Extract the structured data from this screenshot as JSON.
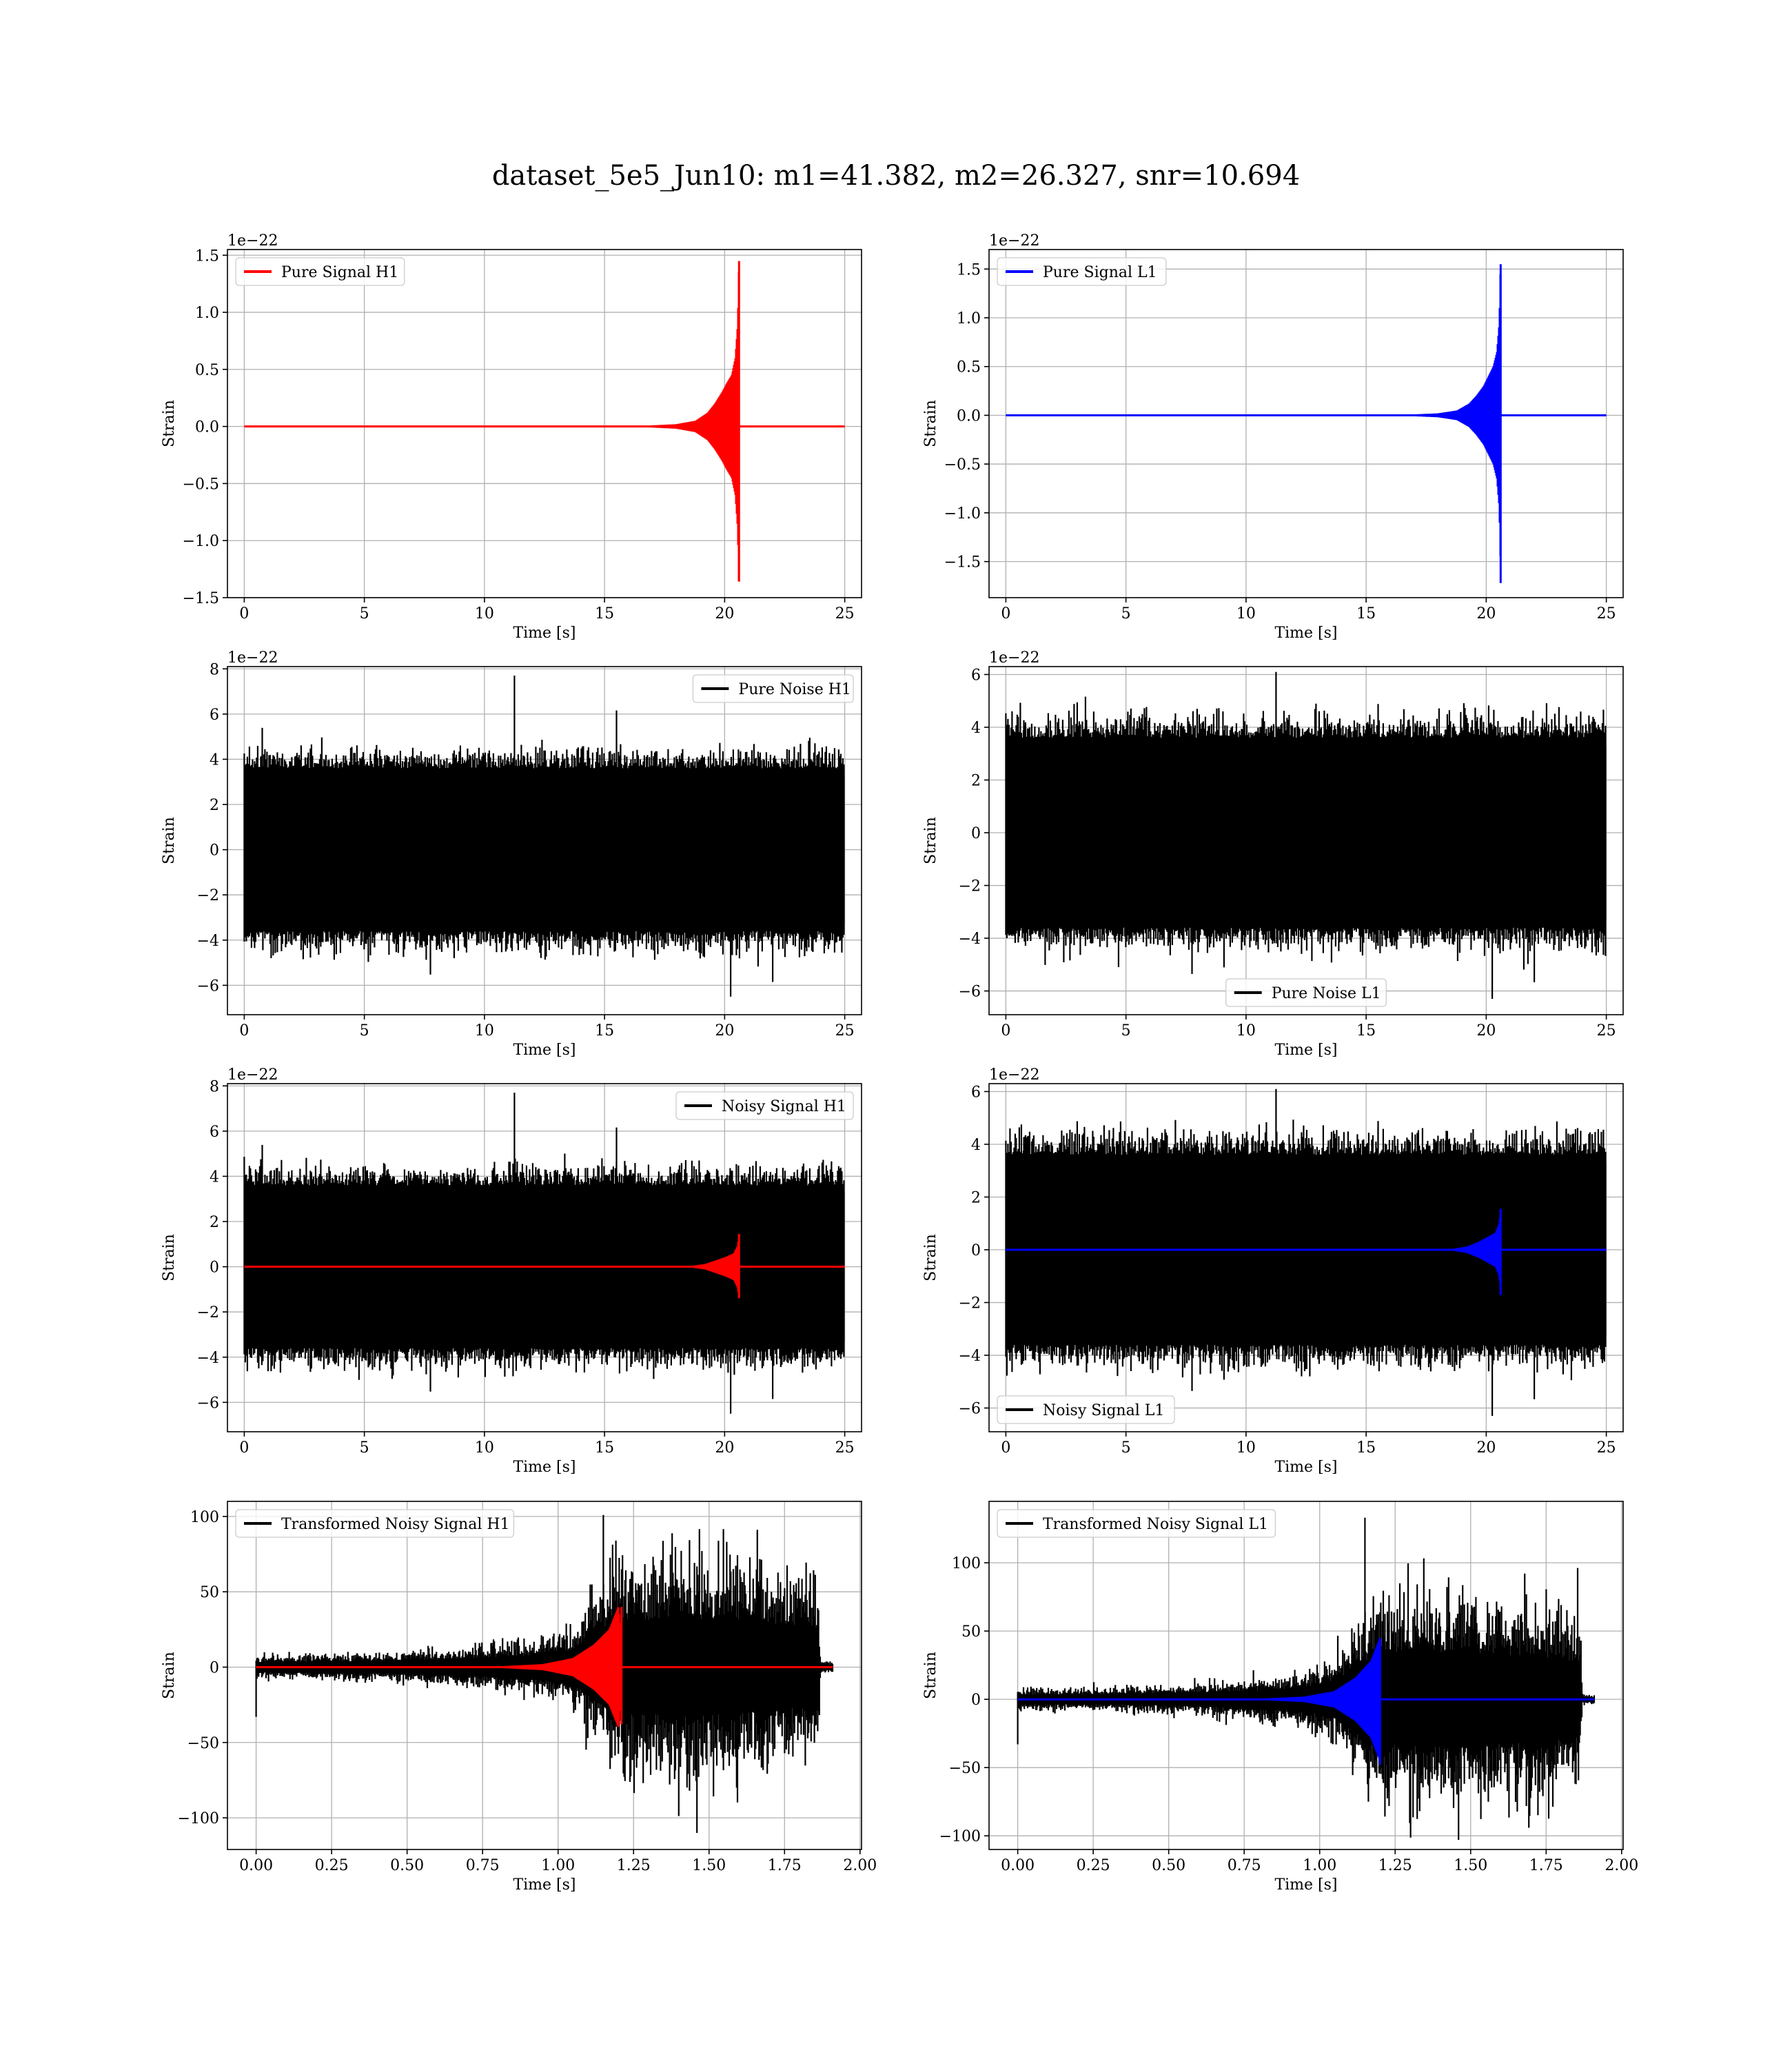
{
  "figure": {
    "title": "dataset_5e5_Jun10: m1=41.382, m2=26.327, snr=10.694"
  },
  "colors": {
    "h1": "#ff0000",
    "l1": "#0000ff",
    "noise": "#000000",
    "grid": "#b0b0b0"
  },
  "chart_data": [
    {
      "id": "pure-signal-h1",
      "type": "line",
      "kind": "chirp",
      "title": "",
      "xlabel": "Time [s]",
      "ylabel": "Strain",
      "offset_text": "1e−22",
      "xlim": [
        -0.7,
        25.7
      ],
      "ylim": [
        -1.5,
        1.55
      ],
      "xticks": [
        0,
        5,
        10,
        15,
        20,
        25
      ],
      "xtick_labels": [
        "0",
        "5",
        "10",
        "15",
        "20",
        "25"
      ],
      "yticks": [
        -1.5,
        -1.0,
        -0.5,
        0.0,
        0.5,
        1.0,
        1.5
      ],
      "ytick_labels": [
        "−1.5",
        "−1.0",
        "−0.5",
        "0.0",
        "0.5",
        "1.0",
        "1.5"
      ],
      "grid": true,
      "legend_position": "upper left",
      "series": [
        {
          "name": "Pure Signal H1",
          "color": "#ff0000",
          "x_range": [
            0,
            25
          ],
          "merger_time": 20.6,
          "peak": 1.45,
          "trough": -1.36,
          "envelope": [
            [
              16.0,
              0.005
            ],
            [
              17.0,
              0.01
            ],
            [
              18.0,
              0.02
            ],
            [
              18.8,
              0.05
            ],
            [
              19.3,
              0.12
            ],
            [
              19.6,
              0.2
            ],
            [
              19.9,
              0.3
            ],
            [
              20.1,
              0.38
            ],
            [
              20.3,
              0.45
            ],
            [
              20.45,
              0.6
            ],
            [
              20.55,
              0.9
            ],
            [
              20.6,
              1.45
            ],
            [
              20.62,
              0.0
            ]
          ]
        }
      ]
    },
    {
      "id": "pure-signal-l1",
      "type": "line",
      "kind": "chirp",
      "title": "",
      "xlabel": "Time [s]",
      "ylabel": "Strain",
      "offset_text": "1e−22",
      "xlim": [
        -0.7,
        25.7
      ],
      "ylim": [
        -1.87,
        1.7
      ],
      "xticks": [
        0,
        5,
        10,
        15,
        20,
        25
      ],
      "xtick_labels": [
        "0",
        "5",
        "10",
        "15",
        "20",
        "25"
      ],
      "yticks": [
        -1.5,
        -1.0,
        -0.5,
        0.0,
        0.5,
        1.0,
        1.5
      ],
      "ytick_labels": [
        "−1.5",
        "−1.0",
        "−0.5",
        "0.0",
        "0.5",
        "1.0",
        "1.5"
      ],
      "grid": true,
      "legend_position": "upper left",
      "series": [
        {
          "name": "Pure Signal L1",
          "color": "#0000ff",
          "x_range": [
            0,
            25
          ],
          "merger_time": 20.6,
          "peak": 1.55,
          "trough": -1.72,
          "envelope": [
            [
              16.0,
              0.005
            ],
            [
              17.0,
              0.01
            ],
            [
              18.0,
              0.02
            ],
            [
              18.8,
              0.05
            ],
            [
              19.3,
              0.12
            ],
            [
              19.6,
              0.2
            ],
            [
              19.9,
              0.3
            ],
            [
              20.1,
              0.4
            ],
            [
              20.3,
              0.5
            ],
            [
              20.45,
              0.65
            ],
            [
              20.55,
              0.95
            ],
            [
              20.6,
              1.55
            ],
            [
              20.62,
              0.0
            ]
          ]
        }
      ]
    },
    {
      "id": "pure-noise-h1",
      "type": "line",
      "kind": "noise",
      "title": "",
      "xlabel": "Time [s]",
      "ylabel": "Strain",
      "offset_text": "1e−22",
      "xlim": [
        -0.7,
        25.7
      ],
      "ylim": [
        -7.3,
        8.1
      ],
      "xticks": [
        0,
        5,
        10,
        15,
        20,
        25
      ],
      "xtick_labels": [
        "0",
        "5",
        "10",
        "15",
        "20",
        "25"
      ],
      "yticks": [
        -6,
        -4,
        -2,
        0,
        2,
        4,
        6,
        8
      ],
      "ytick_labels": [
        "−6",
        "−4",
        "−2",
        "0",
        "2",
        "4",
        "6",
        "8"
      ],
      "grid": true,
      "legend_position": "upper right",
      "series": [
        {
          "name": "Pure Noise H1",
          "color": "#000000",
          "x_range": [
            0,
            25
          ],
          "band": [
            -3.3,
            3.3
          ],
          "max": 7.7,
          "min": -6.5
        }
      ]
    },
    {
      "id": "pure-noise-l1",
      "type": "line",
      "kind": "noise",
      "title": "",
      "xlabel": "Time [s]",
      "ylabel": "Strain",
      "offset_text": "1e−22",
      "xlim": [
        -0.7,
        25.7
      ],
      "ylim": [
        -6.9,
        6.3
      ],
      "xticks": [
        0,
        5,
        10,
        15,
        20,
        25
      ],
      "xtick_labels": [
        "0",
        "5",
        "10",
        "15",
        "20",
        "25"
      ],
      "yticks": [
        -6,
        -4,
        -2,
        0,
        2,
        4,
        6
      ],
      "ytick_labels": [
        "−6",
        "−4",
        "−2",
        "0",
        "2",
        "4",
        "6"
      ],
      "grid": true,
      "legend_position": "lower center",
      "series": [
        {
          "name": "Pure Noise L1",
          "color": "#000000",
          "x_range": [
            0,
            25
          ],
          "band": [
            -3.3,
            3.3
          ],
          "max": 6.1,
          "min": -6.3
        }
      ]
    },
    {
      "id": "noisy-signal-h1",
      "type": "line",
      "kind": "noisy",
      "title": "",
      "xlabel": "Time [s]",
      "ylabel": "Strain",
      "offset_text": "1e−22",
      "xlim": [
        -0.7,
        25.7
      ],
      "ylim": [
        -7.3,
        8.1
      ],
      "xticks": [
        0,
        5,
        10,
        15,
        20,
        25
      ],
      "xtick_labels": [
        "0",
        "5",
        "10",
        "15",
        "20",
        "25"
      ],
      "yticks": [
        -6,
        -4,
        -2,
        0,
        2,
        4,
        6,
        8
      ],
      "ytick_labels": [
        "−6",
        "−4",
        "−2",
        "0",
        "2",
        "4",
        "6",
        "8"
      ],
      "grid": true,
      "legend_position": "upper right",
      "series": [
        {
          "name": "Noisy Signal H1",
          "color": "#000000",
          "x_range": [
            0,
            25
          ],
          "band": [
            -3.3,
            3.3
          ],
          "max": 7.7,
          "min": -6.5
        },
        {
          "name": "",
          "color": "#ff0000",
          "x_range": [
            0,
            25
          ],
          "merger_time": 20.6,
          "peak": 1.45,
          "trough": -1.36,
          "envelope": [
            [
              18.5,
              0.02
            ],
            [
              19.2,
              0.12
            ],
            [
              19.7,
              0.3
            ],
            [
              20.1,
              0.45
            ],
            [
              20.4,
              0.6
            ],
            [
              20.55,
              0.95
            ],
            [
              20.6,
              1.45
            ],
            [
              20.62,
              0.0
            ]
          ]
        }
      ]
    },
    {
      "id": "noisy-signal-l1",
      "type": "line",
      "kind": "noisy",
      "title": "",
      "xlabel": "Time [s]",
      "ylabel": "Strain",
      "offset_text": "1e−22",
      "xlim": [
        -0.7,
        25.7
      ],
      "ylim": [
        -6.9,
        6.3
      ],
      "xticks": [
        0,
        5,
        10,
        15,
        20,
        25
      ],
      "xtick_labels": [
        "0",
        "5",
        "10",
        "15",
        "20",
        "25"
      ],
      "yticks": [
        -6,
        -4,
        -2,
        0,
        2,
        4,
        6
      ],
      "ytick_labels": [
        "−6",
        "−4",
        "−2",
        "0",
        "2",
        "4",
        "6"
      ],
      "grid": true,
      "legend_position": "lower left",
      "series": [
        {
          "name": "Noisy Signal L1",
          "color": "#000000",
          "x_range": [
            0,
            25
          ],
          "band": [
            -3.3,
            3.3
          ],
          "max": 6.1,
          "min": -6.3
        },
        {
          "name": "",
          "color": "#0000ff",
          "x_range": [
            0,
            25
          ],
          "merger_time": 20.6,
          "peak": 1.55,
          "trough": -1.72,
          "envelope": [
            [
              18.5,
              0.02
            ],
            [
              19.2,
              0.12
            ],
            [
              19.7,
              0.3
            ],
            [
              20.1,
              0.5
            ],
            [
              20.4,
              0.65
            ],
            [
              20.55,
              1.0
            ],
            [
              20.6,
              1.55
            ],
            [
              20.62,
              0.0
            ]
          ]
        }
      ]
    },
    {
      "id": "transformed-noisy-signal-h1",
      "type": "line",
      "kind": "transformed",
      "title": "",
      "xlabel": "Time [s]",
      "ylabel": "Strain",
      "offset_text": "",
      "xlim": [
        -0.095,
        2.005
      ],
      "ylim": [
        -121,
        110
      ],
      "xticks": [
        0.0,
        0.25,
        0.5,
        0.75,
        1.0,
        1.25,
        1.5,
        1.75,
        2.0
      ],
      "xtick_labels": [
        "0.00",
        "0.25",
        "0.50",
        "0.75",
        "1.00",
        "1.25",
        "1.50",
        "1.75",
        "2.00"
      ],
      "yticks": [
        -100,
        -50,
        0,
        50,
        100
      ],
      "ytick_labels": [
        "−100",
        "−50",
        "0",
        "50",
        "100"
      ],
      "grid": true,
      "legend_position": "upper left",
      "series": [
        {
          "name": "Transformed Noisy Signal H1",
          "color": "#000000",
          "x_range": [
            0,
            1.91
          ],
          "max": 101,
          "min": -110,
          "envelope": [
            [
              0.0,
              6
            ],
            [
              0.4,
              7
            ],
            [
              0.7,
              10
            ],
            [
              0.9,
              14
            ],
            [
              1.05,
              20
            ],
            [
              1.12,
              40
            ],
            [
              1.2,
              55
            ],
            [
              1.4,
              58
            ],
            [
              1.6,
              55
            ],
            [
              1.75,
              50
            ],
            [
              1.86,
              45
            ],
            [
              1.87,
              3
            ],
            [
              1.91,
              3
            ]
          ]
        },
        {
          "name": "",
          "color": "#ff0000",
          "x_range": [
            0,
            1.91
          ],
          "merger_time": 1.21,
          "peak": 40,
          "trough": -38,
          "envelope": [
            [
              0.8,
              0.5
            ],
            [
              0.95,
              2
            ],
            [
              1.05,
              6
            ],
            [
              1.12,
              15
            ],
            [
              1.17,
              25
            ],
            [
              1.2,
              40
            ],
            [
              1.215,
              0
            ]
          ]
        }
      ]
    },
    {
      "id": "transformed-noisy-signal-l1",
      "type": "line",
      "kind": "transformed",
      "title": "",
      "xlabel": "Time [s]",
      "ylabel": "Strain",
      "offset_text": "",
      "xlim": [
        -0.095,
        2.005
      ],
      "ylim": [
        -110,
        145
      ],
      "xticks": [
        0.0,
        0.25,
        0.5,
        0.75,
        1.0,
        1.25,
        1.5,
        1.75,
        2.0
      ],
      "xtick_labels": [
        "0.00",
        "0.25",
        "0.50",
        "0.75",
        "1.00",
        "1.25",
        "1.50",
        "1.75",
        "2.00"
      ],
      "yticks": [
        -100,
        -50,
        0,
        50,
        100
      ],
      "ytick_labels": [
        "−100",
        "−50",
        "0",
        "50",
        "100"
      ],
      "grid": true,
      "legend_position": "upper left",
      "series": [
        {
          "name": "Transformed Noisy Signal L1",
          "color": "#000000",
          "x_range": [
            0,
            1.91
          ],
          "max": 133,
          "min": -103,
          "envelope": [
            [
              0.0,
              6
            ],
            [
              0.4,
              7
            ],
            [
              0.7,
              10
            ],
            [
              0.9,
              14
            ],
            [
              1.05,
              22
            ],
            [
              1.12,
              45
            ],
            [
              1.2,
              60
            ],
            [
              1.4,
              62
            ],
            [
              1.6,
              58
            ],
            [
              1.75,
              55
            ],
            [
              1.86,
              50
            ],
            [
              1.87,
              3
            ],
            [
              1.91,
              3
            ]
          ]
        },
        {
          "name": "",
          "color": "#0000ff",
          "x_range": [
            0,
            1.91
          ],
          "merger_time": 1.2,
          "peak": 45,
          "trough": -48,
          "envelope": [
            [
              0.8,
              0.5
            ],
            [
              0.95,
              2
            ],
            [
              1.05,
              6
            ],
            [
              1.12,
              16
            ],
            [
              1.17,
              28
            ],
            [
              1.2,
              45
            ],
            [
              1.215,
              0
            ]
          ]
        }
      ]
    }
  ]
}
